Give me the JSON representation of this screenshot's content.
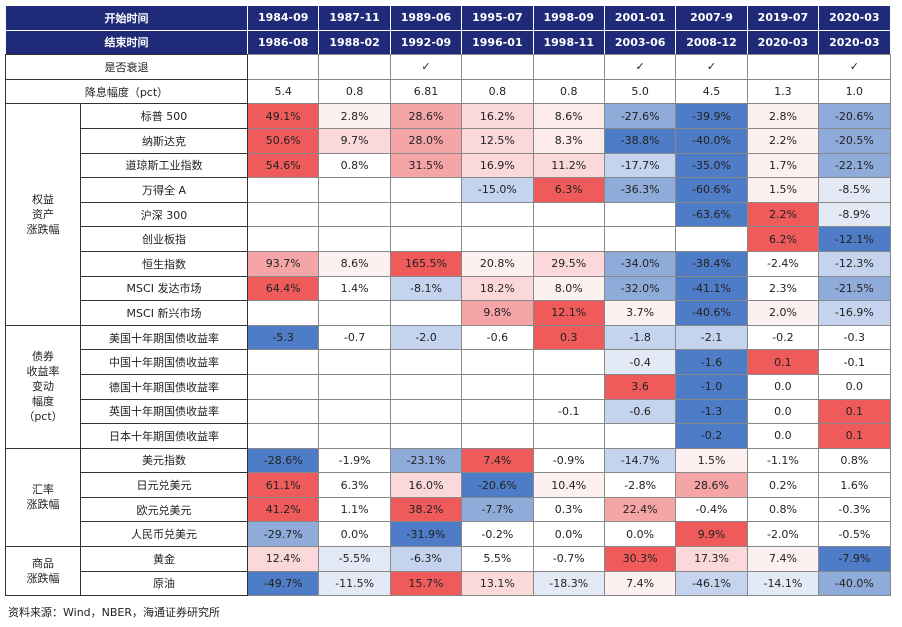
{
  "header": {
    "start_label": "开始时间",
    "start": [
      "1984-09",
      "1987-11",
      "1989-06",
      "1995-07",
      "1998-09",
      "2001-01",
      "2007-9",
      "2019-07",
      "2020-03"
    ],
    "end_label": "结束时间",
    "end": [
      "1986-08",
      "1988-02",
      "1992-09",
      "1996-01",
      "1998-11",
      "2003-06",
      "2008-12",
      "2020-03",
      "2020-03"
    ]
  },
  "recession": {
    "label": "是否衰退",
    "marks": [
      null,
      null,
      "✓",
      null,
      null,
      "✓",
      "✓",
      null,
      "✓"
    ]
  },
  "rate_cut": {
    "label": "降息幅度（pct）",
    "values": [
      "5.4",
      "0.8",
      "6.81",
      "0.8",
      "0.8",
      "5.0",
      "4.5",
      "1.3",
      "1.0"
    ]
  },
  "groups": [
    {
      "label": "权益\n资产\n涨跌幅",
      "rows": [
        {
          "label": "标普 500",
          "cells": [
            "49.1%",
            "2.8%",
            "28.6%",
            "16.2%",
            "8.6%",
            "-27.6%",
            "-39.9%",
            "2.8%",
            "-20.6%"
          ],
          "fills": [
            "#ef5b5b",
            "#fdf0f0",
            "#f6a5a7",
            "#fbd9da",
            "#fdeaea",
            "#8fabd9",
            "#4f7cc6",
            "#fdf0f0",
            "#8fabd9"
          ]
        },
        {
          "label": "纳斯达克",
          "cells": [
            "50.6%",
            "9.7%",
            "28.0%",
            "12.5%",
            "8.3%",
            "-38.8%",
            "-40.0%",
            "2.2%",
            "-20.5%"
          ],
          "fills": [
            "#ef5b5b",
            "#fbd9da",
            "#f6a5a7",
            "#fbd9da",
            "#fdeaea",
            "#4f7cc6",
            "#4f7cc6",
            "#fdf0f0",
            "#8fabd9"
          ]
        },
        {
          "label": "道琼斯工业指数",
          "cells": [
            "54.6%",
            "0.8%",
            "31.5%",
            "16.9%",
            "11.2%",
            "-17.7%",
            "-35.0%",
            "1.7%",
            "-22.1%"
          ],
          "fills": [
            "#ef5b5b",
            null,
            "#f6a5a7",
            "#fbd9da",
            "#fbd9da",
            "#c5d4ee",
            "#4f7cc6",
            "#fdf0f0",
            "#8fabd9"
          ]
        },
        {
          "label": "万得全 A",
          "cells": [
            null,
            null,
            null,
            "-15.0%",
            "6.3%",
            "-36.3%",
            "-60.6%",
            "1.5%",
            "-8.5%"
          ],
          "fills": [
            null,
            null,
            null,
            "#c5d4ee",
            "#ef5b5b",
            "#8fabd9",
            "#4f7cc6",
            "#fdf0f0",
            "#e3eaf6"
          ]
        },
        {
          "label": "沪深 300",
          "cells": [
            null,
            null,
            null,
            null,
            null,
            null,
            "-63.6%",
            "2.2%",
            "-8.9%"
          ],
          "fills": [
            null,
            null,
            null,
            null,
            null,
            null,
            "#4f7cc6",
            "#ef5b5b",
            "#e3eaf6"
          ]
        },
        {
          "label": "创业板指",
          "cells": [
            null,
            null,
            null,
            null,
            null,
            null,
            null,
            "6.2%",
            "-12.1%"
          ],
          "fills": [
            null,
            null,
            null,
            null,
            null,
            null,
            null,
            "#ef5b5b",
            "#4f7cc6"
          ]
        },
        {
          "label": "恒生指数",
          "cells": [
            "93.7%",
            "8.6%",
            "165.5%",
            "20.8%",
            "29.5%",
            "-34.0%",
            "-38.4%",
            "-2.4%",
            "-12.3%"
          ],
          "fills": [
            "#f6a5a7",
            "#fdf0f0",
            "#ef5b5b",
            "#fdf0f0",
            "#fbd9da",
            "#8fabd9",
            "#4f7cc6",
            null,
            "#c5d4ee"
          ]
        },
        {
          "label": "MSCI 发达市场",
          "cells": [
            "64.4%",
            "1.4%",
            "-8.1%",
            "18.2%",
            "8.0%",
            "-32.0%",
            "-41.1%",
            "2.3%",
            "-21.5%"
          ],
          "fills": [
            "#ef5b5b",
            null,
            "#c5d4ee",
            "#fbd9da",
            "#fdf0f0",
            "#8fabd9",
            "#4f7cc6",
            null,
            "#8fabd9"
          ]
        },
        {
          "label": "MSCI 新兴市场",
          "cells": [
            null,
            null,
            null,
            "9.8%",
            "12.1%",
            "3.7%",
            "-40.6%",
            "2.0%",
            "-16.9%"
          ],
          "fills": [
            null,
            null,
            null,
            "#f6a5a7",
            "#ef5b5b",
            "#fdf0f0",
            "#4f7cc6",
            "#fdf0f0",
            "#c5d4ee"
          ]
        }
      ]
    },
    {
      "label": "债券\n收益率\n变动\n幅度\n（pct）",
      "rows": [
        {
          "label": "美国十年期国债收益率",
          "cells": [
            "-5.3",
            "-0.7",
            "-2.0",
            "-0.6",
            "0.3",
            "-1.8",
            "-2.1",
            "-0.2",
            "-0.3"
          ],
          "fills": [
            "#4f7cc6",
            null,
            "#c5d4ee",
            null,
            "#ef5b5b",
            "#c5d4ee",
            "#c5d4ee",
            null,
            null
          ]
        },
        {
          "label": "中国十年期国债收益率",
          "cells": [
            null,
            null,
            null,
            null,
            null,
            "-0.4",
            "-1.6",
            "0.1",
            "-0.1"
          ],
          "fills": [
            null,
            null,
            null,
            null,
            null,
            "#e3eaf6",
            "#4f7cc6",
            "#ef5b5b",
            null
          ]
        },
        {
          "label": "德国十年期国债收益率",
          "cells": [
            null,
            null,
            null,
            null,
            null,
            "3.6",
            "-1.0",
            "0.0",
            "0.0"
          ],
          "fills": [
            null,
            null,
            null,
            null,
            null,
            "#ef5b5b",
            "#4f7cc6",
            null,
            null
          ]
        },
        {
          "label": "英国十年期国债收益率",
          "cells": [
            null,
            null,
            null,
            null,
            "-0.1",
            "-0.6",
            "-1.3",
            "0.0",
            "0.1"
          ],
          "fills": [
            null,
            null,
            null,
            null,
            null,
            "#c5d4ee",
            "#4f7cc6",
            null,
            "#ef5b5b"
          ]
        },
        {
          "label": "日本十年期国债收益率",
          "cells": [
            null,
            null,
            null,
            null,
            null,
            null,
            "-0.2",
            "0.0",
            "0.1"
          ],
          "fills": [
            null,
            null,
            null,
            null,
            null,
            null,
            "#4f7cc6",
            null,
            "#ef5b5b"
          ]
        }
      ]
    },
    {
      "label": "汇率\n涨跌幅",
      "rows": [
        {
          "label": "美元指数",
          "cells": [
            "-28.6%",
            "-1.9%",
            "-23.1%",
            "7.4%",
            "-0.9%",
            "-14.7%",
            "1.5%",
            "-1.1%",
            "0.8%"
          ],
          "fills": [
            "#4f7cc6",
            null,
            "#8fabd9",
            "#ef5b5b",
            null,
            "#c5d4ee",
            "#fdf0f0",
            null,
            null
          ]
        },
        {
          "label": "日元兑美元",
          "cells": [
            "61.1%",
            "6.3%",
            "16.0%",
            "-20.6%",
            "10.4%",
            "-2.8%",
            "28.6%",
            "0.2%",
            "1.6%"
          ],
          "fills": [
            "#ef5b5b",
            null,
            "#fbd9da",
            "#4f7cc6",
            "#fdf0f0",
            null,
            "#f6a5a7",
            null,
            null
          ]
        },
        {
          "label": "欧元兑美元",
          "cells": [
            "41.2%",
            "1.1%",
            "38.2%",
            "-7.7%",
            "0.3%",
            "22.4%",
            "-0.4%",
            "0.8%",
            "-0.3%"
          ],
          "fills": [
            "#ef5b5b",
            null,
            "#ef5b5b",
            "#8fabd9",
            null,
            "#f6a5a7",
            null,
            null,
            null
          ]
        },
        {
          "label": "人民币兑美元",
          "cells": [
            "-29.7%",
            "0.0%",
            "-31.9%",
            "-0.2%",
            "0.0%",
            "0.0%",
            "9.9%",
            "-2.0%",
            "-0.5%"
          ],
          "fills": [
            "#8fabd9",
            null,
            "#4f7cc6",
            null,
            null,
            null,
            "#ef5b5b",
            null,
            null
          ]
        }
      ]
    },
    {
      "label": "商品\n涨跌幅",
      "rows": [
        {
          "label": "黄金",
          "cells": [
            "12.4%",
            "-5.5%",
            "-6.3%",
            "5.5%",
            "-0.7%",
            "30.3%",
            "17.3%",
            "7.4%",
            "-7.9%"
          ],
          "fills": [
            "#fbd9da",
            "#e3eaf6",
            "#c5d4ee",
            null,
            null,
            "#ef5b5b",
            "#fbd9da",
            "#fdf0f0",
            "#4f7cc6"
          ]
        },
        {
          "label": "原油",
          "cells": [
            "-49.7%",
            "-11.5%",
            "15.7%",
            "13.1%",
            "-18.3%",
            "7.4%",
            "-46.1%",
            "-14.1%",
            "-40.0%"
          ],
          "fills": [
            "#4f7cc6",
            "#e3eaf6",
            "#ef5b5b",
            "#fbd9da",
            "#e3eaf6",
            "#fdf0f0",
            "#c5d4ee",
            "#e3eaf6",
            "#8fabd9"
          ]
        }
      ]
    }
  ],
  "source": "资料来源：Wind，NBER，海通证券研究所"
}
